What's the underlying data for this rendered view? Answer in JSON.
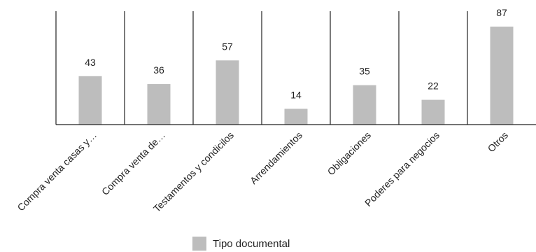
{
  "chart_data": {
    "type": "bar",
    "categories": [
      "Compra venta casas y…",
      "Compra venta de…",
      "Testamentos y condicilos",
      "Arrendamientos",
      "Obligaciones",
      "Poderes para negocios",
      "Otros"
    ],
    "series": [
      {
        "name": "Tipo documental",
        "values": [
          43,
          36,
          57,
          14,
          35,
          22,
          87
        ],
        "color": "#bdbdbd"
      }
    ],
    "data_labels": [
      "43",
      "36",
      "57",
      "14",
      "35",
      "22",
      "87"
    ],
    "ylim": [
      0,
      100
    ],
    "grid": false,
    "legend_position": "bottom"
  }
}
